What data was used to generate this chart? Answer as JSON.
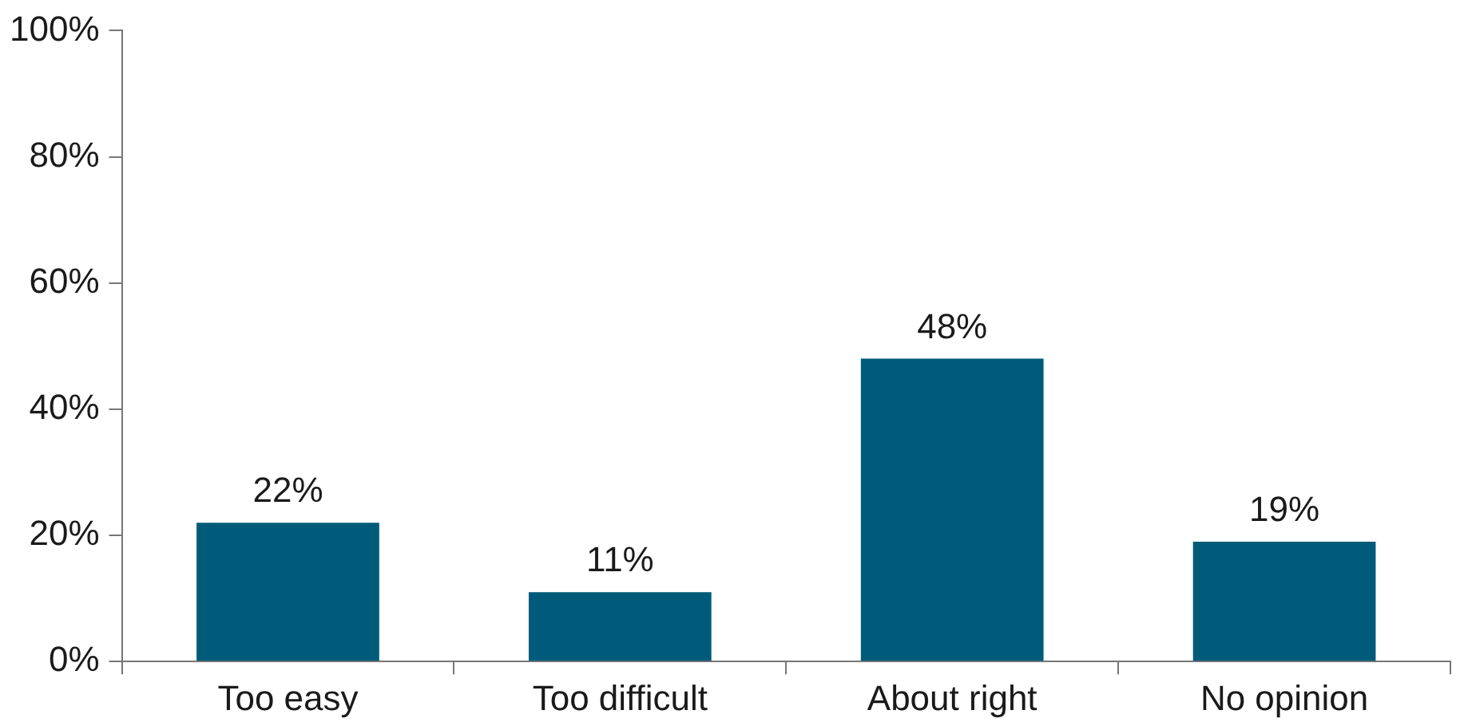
{
  "chart_data": {
    "type": "bar",
    "categories": [
      "Too easy",
      "Too difficult",
      "About right",
      "No opinion"
    ],
    "values": [
      22,
      11,
      48,
      19
    ],
    "color": "#005b7a",
    "value_labels": [
      "22%",
      "11%",
      "48%",
      "19%"
    ],
    "ylim": [
      0,
      100
    ],
    "yticks": [
      {
        "value": 0,
        "label": "0%"
      },
      {
        "value": 20,
        "label": "20%"
      },
      {
        "value": 40,
        "label": "40%"
      },
      {
        "value": 60,
        "label": "60%"
      },
      {
        "value": 80,
        "label": "80%"
      },
      {
        "value": 100,
        "label": "100%"
      }
    ],
    "grid": false,
    "legend": false
  }
}
